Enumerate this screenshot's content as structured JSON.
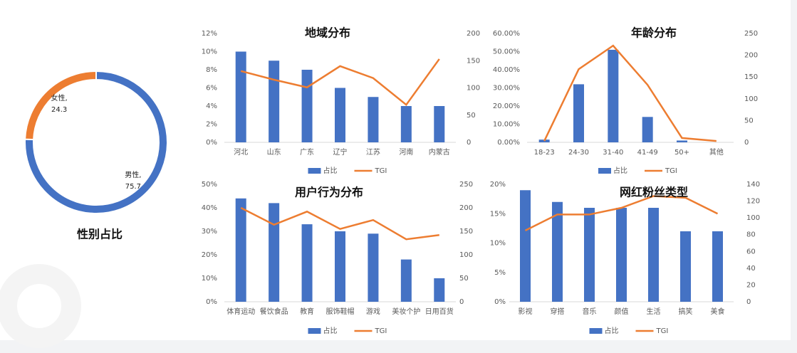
{
  "chart_data": [
    {
      "type": "donut",
      "title": "性别占比",
      "categories": [
        "男性,",
        "女性,"
      ],
      "values": [
        75.7,
        24.3
      ],
      "colors": [
        "#4472c4",
        "#ed7d31"
      ]
    },
    {
      "type": "combo",
      "title": "地域分布",
      "categories": [
        "河北",
        "山东",
        "广东",
        "辽宁",
        "江苏",
        "河南",
        "内蒙古"
      ],
      "series": [
        {
          "name": "占比",
          "type": "bar",
          "color": "#4472c4",
          "values": [
            10,
            9,
            8,
            6,
            5,
            4,
            4
          ]
        },
        {
          "name": "TGI",
          "type": "line",
          "axis": "y2",
          "color": "#ed7d31",
          "values": [
            131,
            115,
            101,
            140,
            118,
            69,
            153
          ]
        }
      ],
      "ylim": [
        0,
        12
      ],
      "yticks": [
        {
          "value": 0,
          "label": "0%"
        },
        {
          "value": 2,
          "label": "2%"
        },
        {
          "value": 4,
          "label": "4%"
        },
        {
          "value": 6,
          "label": "6%"
        },
        {
          "value": 8,
          "label": "8%"
        },
        {
          "value": 10,
          "label": "10%"
        },
        {
          "value": 12,
          "label": "12%"
        }
      ],
      "y2lim": [
        0,
        200
      ],
      "y2ticks": [
        0,
        50,
        100,
        150,
        200
      ]
    },
    {
      "type": "combo",
      "title": "年龄分布",
      "categories": [
        "18-23",
        "24-30",
        "31-40",
        "41-49",
        "50+",
        "其他"
      ],
      "series": [
        {
          "name": "占比",
          "type": "bar",
          "color": "#4472c4",
          "values": [
            1.5,
            32,
            51,
            14,
            1,
            0
          ]
        },
        {
          "name": "TGI",
          "type": "line",
          "axis": "y2",
          "color": "#ed7d31",
          "values": [
            3,
            168,
            222,
            132,
            10,
            3
          ]
        }
      ],
      "ylim": [
        0,
        60
      ],
      "yticks": [
        {
          "value": 0,
          "label": "0.00%"
        },
        {
          "value": 10,
          "label": "10.00%"
        },
        {
          "value": 20,
          "label": "20.00%"
        },
        {
          "value": 30,
          "label": "30.00%"
        },
        {
          "value": 40,
          "label": "40.00%"
        },
        {
          "value": 50,
          "label": "50.00%"
        },
        {
          "value": 60,
          "label": "60.00%"
        }
      ],
      "y2lim": [
        0,
        250
      ],
      "y2ticks": [
        0,
        50,
        100,
        150,
        200,
        250
      ]
    },
    {
      "type": "combo",
      "title": "用户行为分布",
      "categories": [
        "体育运动",
        "餐饮食品",
        "教育",
        "服饰鞋帽",
        "游戏",
        "美妆个护",
        "日用百货"
      ],
      "series": [
        {
          "name": "占比",
          "type": "bar",
          "color": "#4472c4",
          "values": [
            44,
            42,
            33,
            30,
            29,
            18,
            10
          ]
        },
        {
          "name": "TGI",
          "type": "line",
          "axis": "y2",
          "color": "#ed7d31",
          "values": [
            200,
            164,
            192,
            155,
            174,
            133,
            142
          ]
        }
      ],
      "ylim": [
        0,
        50
      ],
      "yticks": [
        {
          "value": 0,
          "label": "0%"
        },
        {
          "value": 10,
          "label": "10%"
        },
        {
          "value": 20,
          "label": "20%"
        },
        {
          "value": 30,
          "label": "30%"
        },
        {
          "value": 40,
          "label": "40%"
        },
        {
          "value": 50,
          "label": "50%"
        }
      ],
      "y2lim": [
        0,
        250
      ],
      "y2ticks": [
        0,
        50,
        100,
        150,
        200,
        250
      ]
    },
    {
      "type": "combo",
      "title": "网红粉丝类型",
      "categories": [
        "影视",
        "穿搭",
        "音乐",
        "颜值",
        "生活",
        "搞笑",
        "美食"
      ],
      "series": [
        {
          "name": "占比",
          "type": "bar",
          "color": "#4472c4",
          "values": [
            19,
            17,
            16,
            16,
            16,
            12,
            12
          ]
        },
        {
          "name": "TGI",
          "type": "line",
          "axis": "y2",
          "color": "#ed7d31",
          "values": [
            85,
            104,
            104,
            112,
            126,
            124,
            105
          ]
        }
      ],
      "ylim": [
        0,
        20
      ],
      "yticks": [
        {
          "value": 0,
          "label": "0%"
        },
        {
          "value": 5,
          "label": "5%"
        },
        {
          "value": 10,
          "label": "10%"
        },
        {
          "value": 15,
          "label": "15%"
        },
        {
          "value": 20,
          "label": "20%"
        }
      ],
      "y2lim": [
        0,
        140
      ],
      "y2ticks": [
        0,
        20,
        40,
        60,
        80,
        100,
        120,
        140
      ]
    }
  ]
}
